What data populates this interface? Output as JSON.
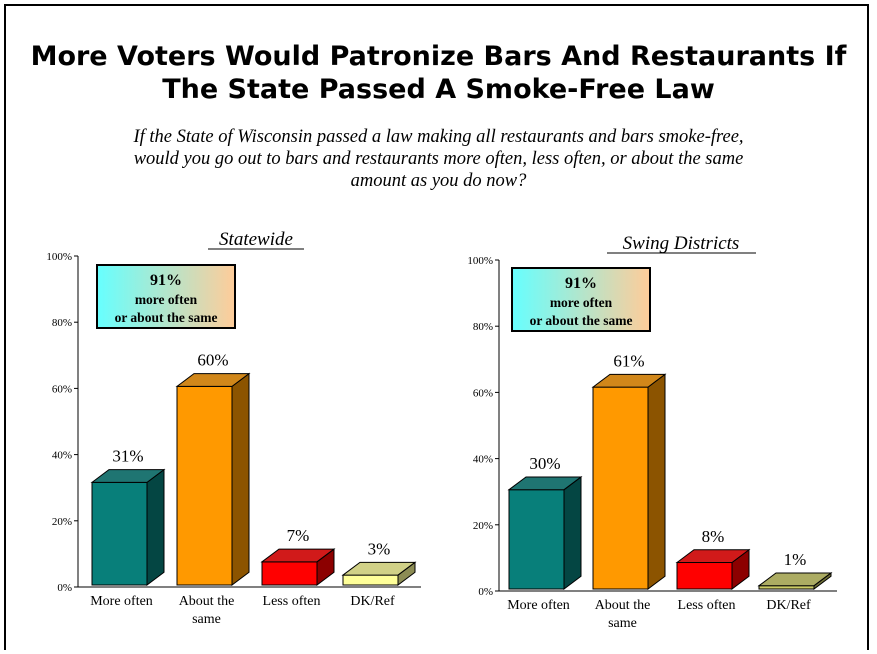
{
  "title": "More Voters Would Patronize Bars And Restaurants If\nThe State Passed A Smoke-Free Law",
  "question": "If the State of Wisconsin passed a law making all restaurants and bars smoke-free,\nwould you go out to bars and restaurants more often, less often, or about the same\namount as you do now?",
  "chart_data": [
    {
      "type": "bar",
      "title": "Statewide",
      "categories": [
        [
          "More often"
        ],
        [
          "About the",
          "same"
        ],
        [
          "Less often"
        ],
        [
          "DK/Ref"
        ]
      ],
      "values": [
        31,
        60,
        7,
        3
      ],
      "value_labels": [
        "31%",
        "60%",
        "7%",
        "3%"
      ],
      "colors": [
        "#087f7a",
        "#ff9900",
        "#ff0000",
        "#ffff99"
      ],
      "ylim": [
        0,
        100
      ],
      "yticks": [
        "0%",
        "20%",
        "40%",
        "60%",
        "80%",
        "100%"
      ],
      "callout": {
        "pct": "91%",
        "line1": "more often",
        "line2": "or about the same"
      }
    },
    {
      "type": "bar",
      "title": "Swing Districts",
      "categories": [
        [
          "More often"
        ],
        [
          "About the",
          "same"
        ],
        [
          "Less often"
        ],
        [
          "DK/Ref"
        ]
      ],
      "values": [
        30,
        61,
        8,
        1
      ],
      "value_labels": [
        "30%",
        "61%",
        "8%",
        "1%"
      ],
      "colors": [
        "#087f7a",
        "#ff9900",
        "#ff0000",
        "#cccc66"
      ],
      "ylim": [
        0,
        100
      ],
      "yticks": [
        "0%",
        "20%",
        "40%",
        "60%",
        "80%",
        "100%"
      ],
      "callout": {
        "pct": "91%",
        "line1": "more often",
        "line2": "or about the same"
      }
    }
  ]
}
